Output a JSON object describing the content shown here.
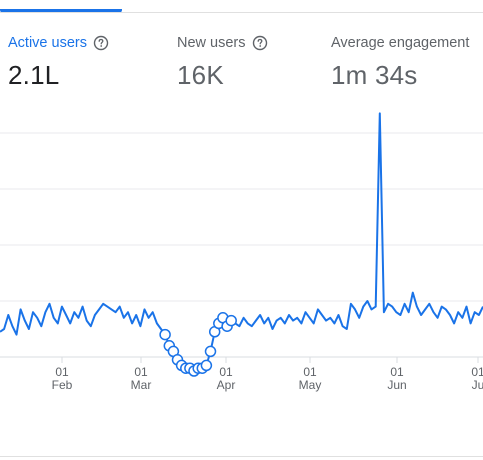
{
  "metrics": [
    {
      "label": "Active users",
      "value": "2.1L",
      "icon": "help-circle-icon"
    },
    {
      "label": "New users",
      "value": "16K",
      "icon": "help-circle-icon"
    },
    {
      "label": "Average engagement",
      "value": "1m 34s"
    }
  ],
  "colors": {
    "accent": "#1a73e8",
    "grid": "#e8eaed",
    "text_secondary": "#5f6368",
    "text_primary": "#202124"
  },
  "chart_data": {
    "type": "line",
    "x_tick_labels": [
      {
        "day": "01",
        "month": "Feb"
      },
      {
        "day": "01",
        "month": "Mar"
      },
      {
        "day": "01",
        "month": "Apr"
      },
      {
        "day": "01",
        "month": "May"
      },
      {
        "day": "01",
        "month": "Jun"
      },
      {
        "day": "01",
        "month": "Ju"
      }
    ],
    "grid": true,
    "series": [
      {
        "values": [
          0.45,
          0.5,
          0.75,
          0.55,
          0.4,
          0.85,
          0.65,
          0.5,
          0.8,
          0.7,
          0.55,
          0.8,
          0.95,
          0.7,
          0.6,
          0.9,
          0.75,
          0.6,
          0.8,
          0.7,
          0.9,
          0.65,
          0.55,
          0.75,
          0.85,
          0.95,
          0.9,
          0.85,
          0.8,
          0.9,
          0.7,
          0.8,
          0.6,
          0.75,
          0.55,
          0.85,
          0.7,
          0.8,
          0.6,
          0.5,
          0.4,
          0.2,
          0.1,
          -0.05,
          -0.15,
          -0.2,
          -0.2,
          -0.25,
          -0.2,
          -0.2,
          -0.15,
          0.1,
          0.45,
          0.6,
          0.7,
          0.55,
          0.65,
          0.6,
          0.55,
          0.7,
          0.6,
          0.55,
          0.65,
          0.75,
          0.6,
          0.7,
          0.5,
          0.65,
          0.7,
          0.6,
          0.75,
          0.65,
          0.7,
          0.6,
          0.8,
          0.7,
          0.6,
          0.85,
          0.75,
          0.65,
          0.7,
          0.6,
          0.75,
          0.55,
          0.5,
          0.95,
          0.85,
          0.7,
          0.9,
          1.0,
          0.85,
          0.9,
          4.35,
          0.8,
          0.95,
          0.9,
          0.8,
          0.75,
          0.95,
          0.8,
          1.15,
          0.9,
          0.75,
          0.85,
          0.95,
          0.8,
          0.7,
          0.9,
          0.85,
          0.75,
          0.6,
          0.8,
          0.7,
          0.9,
          0.6,
          0.8,
          0.75,
          0.9
        ]
      }
    ]
  }
}
